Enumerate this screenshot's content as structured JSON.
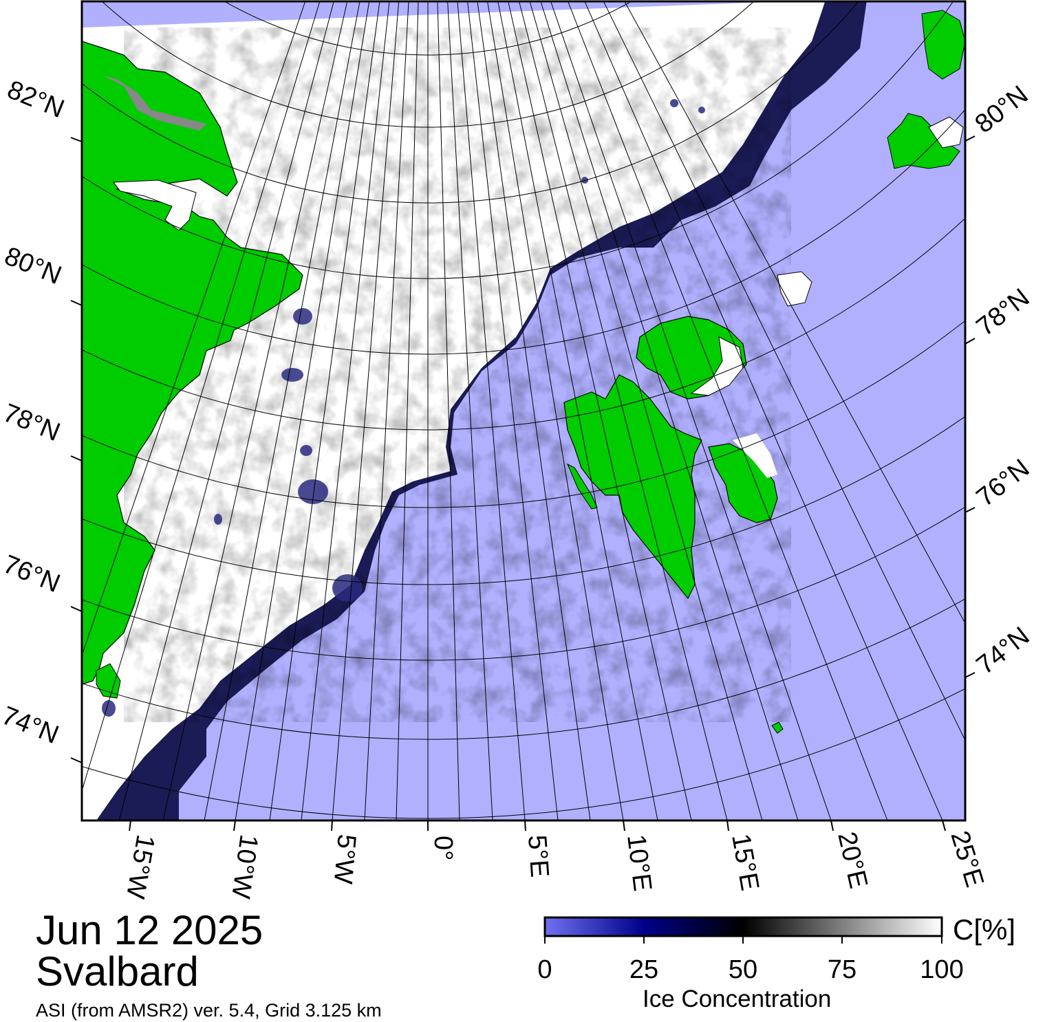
{
  "title": {
    "date": "Jun 12 2025",
    "region": "Svalbard",
    "source": "ASI (from AMSR2) ver. 5.4,  Grid 3.125 km"
  },
  "map": {
    "lat_labels_left": [
      "82°N",
      "80°N",
      "78°N",
      "76°N",
      "74°N"
    ],
    "lat_labels_right": [
      "80°N",
      "78°N",
      "76°N",
      "74°N"
    ],
    "lon_labels": [
      "15°W",
      "10°W",
      "5°W",
      "0°",
      "5°E",
      "10°E",
      "15°E",
      "20°E",
      "25°E"
    ],
    "colors": {
      "open_water": "#b0b0ff",
      "land": "#00cc00",
      "land_ice": "#888888",
      "full_ice": "#ffffff",
      "frame": "#000000"
    }
  },
  "colorbar": {
    "title": "Ice Concentration",
    "unit": "C[%]",
    "ticks": [
      "0",
      "25",
      "50",
      "75",
      "100"
    ],
    "stops": [
      "#7070f0",
      "#00008a",
      "#000000",
      "#808080",
      "#ffffff"
    ]
  }
}
